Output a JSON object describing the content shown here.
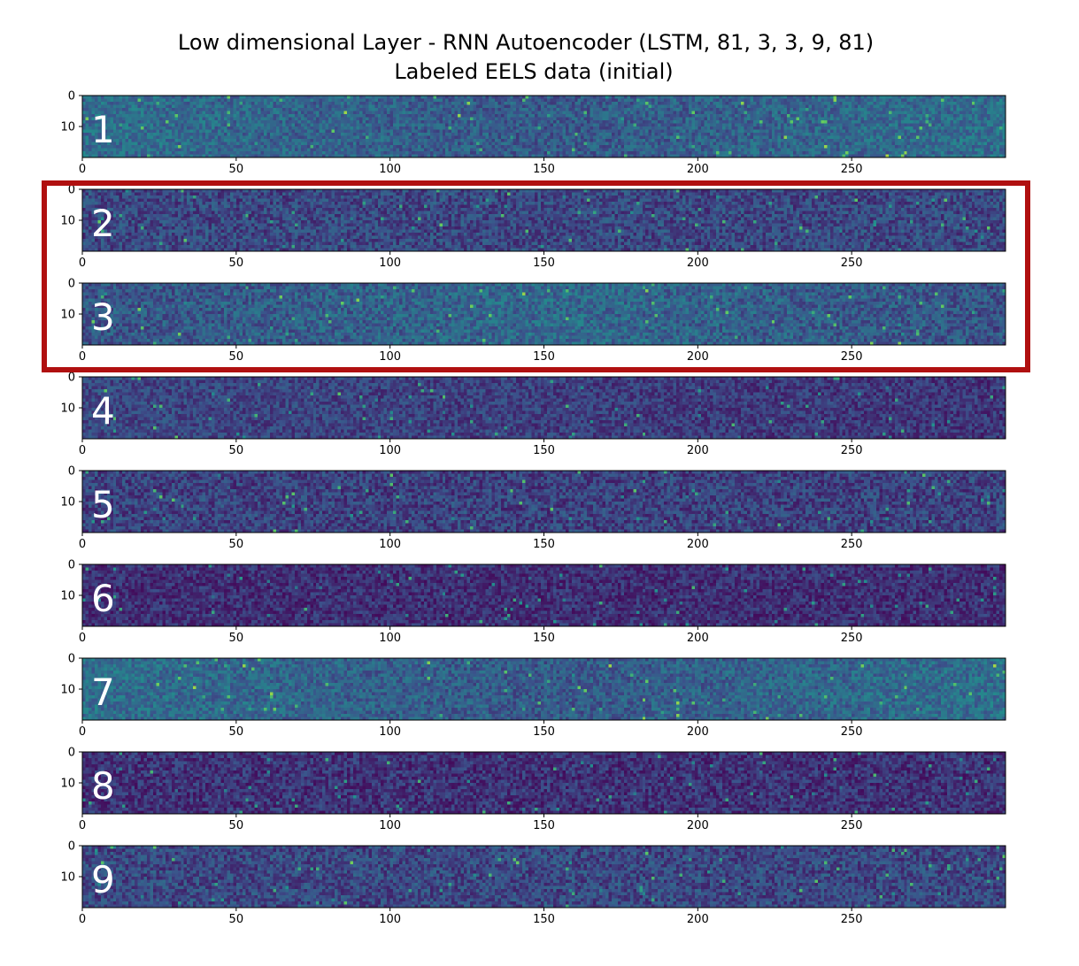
{
  "chart_data": {
    "type": "heatmap",
    "title_line1": "Low dimensional Layer - RNN Autoencoder (LSTM, 81, 3, 3, 9, 81)",
    "title_line2": "Labeled EELS data (initial)",
    "x_ticks": [
      "0",
      "50",
      "100",
      "150",
      "200",
      "250"
    ],
    "x_tick_values": [
      0,
      50,
      100,
      150,
      200,
      250
    ],
    "y_ticks": [
      "0",
      "10"
    ],
    "y_tick_values": [
      0,
      10
    ],
    "xlim": [
      0,
      300
    ],
    "ylim": [
      0,
      20
    ],
    "colormap": "viridis",
    "highlight": {
      "panels": [
        "2",
        "3"
      ],
      "color": "#b01010"
    },
    "panels": [
      {
        "label": "1",
        "mean": 0.3,
        "noise": 0.24,
        "trend": "edges"
      },
      {
        "label": "2",
        "mean": 0.22,
        "noise": 0.26,
        "trend": "flat"
      },
      {
        "label": "3",
        "mean": 0.28,
        "noise": 0.26,
        "trend": "center"
      },
      {
        "label": "4",
        "mean": 0.18,
        "noise": 0.22,
        "trend": "left"
      },
      {
        "label": "5",
        "mean": 0.2,
        "noise": 0.26,
        "trend": "flat"
      },
      {
        "label": "6",
        "mean": 0.14,
        "noise": 0.22,
        "trend": "flat"
      },
      {
        "label": "7",
        "mean": 0.3,
        "noise": 0.24,
        "trend": "edges"
      },
      {
        "label": "8",
        "mean": 0.15,
        "noise": 0.24,
        "trend": "flat"
      },
      {
        "label": "9",
        "mean": 0.22,
        "noise": 0.26,
        "trend": "flat"
      }
    ]
  }
}
